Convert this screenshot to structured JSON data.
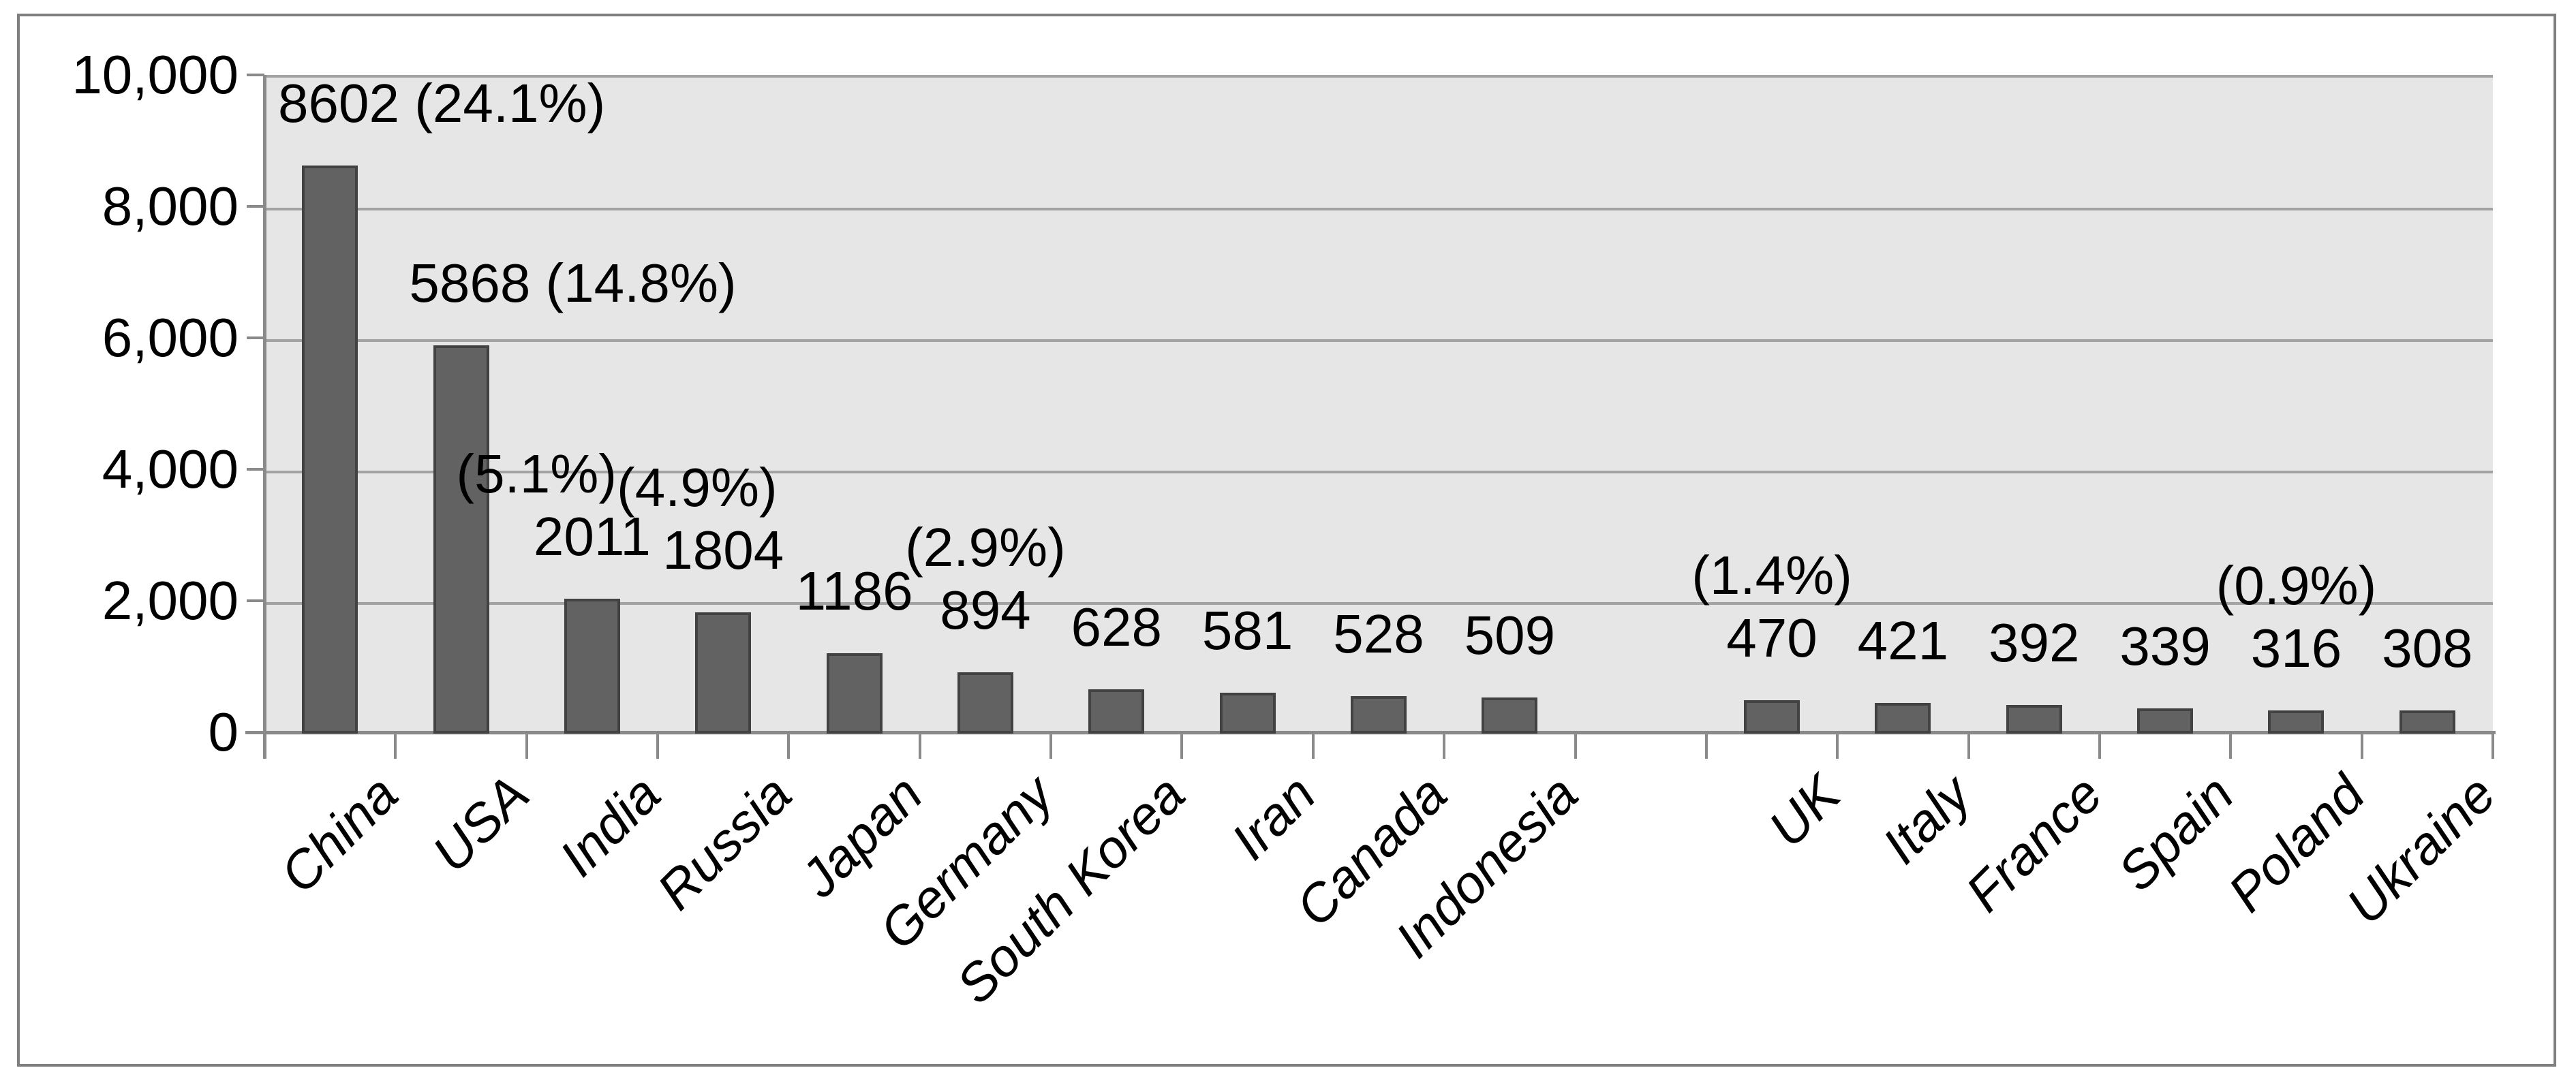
{
  "chart_data": {
    "type": "bar",
    "title": "",
    "xlabel": "",
    "ylabel": "",
    "grid": true,
    "legend": "none",
    "plot_bg": "#e6e6e6",
    "colors": {
      "bar_fill": "#626262",
      "bar_border": "#424242",
      "gridline": "#a3a3a3",
      "axis": "#8a8a8a",
      "frame_border": "#7f7f7f",
      "page_bg": "#ffffff",
      "text": "#000000"
    },
    "y_axis": {
      "min": 0,
      "max": 10000,
      "step": 2000,
      "tick_labels_top_to_bottom": [
        "10,000",
        "8,000",
        "6,000",
        "4,000",
        "2,000",
        "0"
      ]
    },
    "categories": [
      "China",
      "USA",
      "India",
      "Russia",
      "Japan",
      "Germany",
      "South Korea",
      "Iran",
      "Canada",
      "Indonesia",
      "",
      "UK",
      "Italy",
      "France",
      "Spain",
      "Poland",
      "Ukraine"
    ],
    "values": [
      8602,
      5868,
      2011,
      1804,
      1186,
      894,
      628,
      581,
      528,
      509,
      null,
      470,
      421,
      392,
      339,
      316,
      308
    ],
    "points": [
      {
        "category": "China",
        "value": 8602,
        "value_label": "8602 (24.1%)",
        "pct_label": null,
        "label_align": "bar-left",
        "pct_anchor": "center"
      },
      {
        "category": "USA",
        "value": 5868,
        "value_label": "5868 (14.8%)",
        "pct_label": null,
        "label_align": "bar-left",
        "pct_anchor": "center"
      },
      {
        "category": "India",
        "value": 2011,
        "value_label": "2011",
        "pct_label": "(5.1%)",
        "label_align": "center",
        "pct_anchor": "right-at-junction"
      },
      {
        "category": "Russia",
        "value": 1804,
        "value_label": "1804",
        "pct_label": "(4.9%)",
        "label_align": "center",
        "pct_anchor": "left-at-junction"
      },
      {
        "category": "Japan",
        "value": 1186,
        "value_label": "1186",
        "pct_label": null,
        "label_align": "center",
        "pct_anchor": "center"
      },
      {
        "category": "Germany",
        "value": 894,
        "value_label": "894",
        "pct_label": "(2.9%)",
        "label_align": "center",
        "pct_anchor": "center"
      },
      {
        "category": "South Korea",
        "value": 628,
        "value_label": "628",
        "pct_label": null,
        "label_align": "center",
        "pct_anchor": "center"
      },
      {
        "category": "Iran",
        "value": 581,
        "value_label": "581",
        "pct_label": null,
        "label_align": "center",
        "pct_anchor": "center"
      },
      {
        "category": "Canada",
        "value": 528,
        "value_label": "528",
        "pct_label": null,
        "label_align": "center",
        "pct_anchor": "center"
      },
      {
        "category": "Indonesia",
        "value": 509,
        "value_label": "509",
        "pct_label": null,
        "label_align": "center",
        "pct_anchor": "center"
      },
      {
        "category": "",
        "value": null,
        "value_label": null,
        "pct_label": null,
        "label_align": "center",
        "pct_anchor": "center"
      },
      {
        "category": "UK",
        "value": 470,
        "value_label": "470",
        "pct_label": "(1.4%)",
        "label_align": "center",
        "pct_anchor": "center"
      },
      {
        "category": "Italy",
        "value": 421,
        "value_label": "421",
        "pct_label": null,
        "label_align": "center",
        "pct_anchor": "center"
      },
      {
        "category": "France",
        "value": 392,
        "value_label": "392",
        "pct_label": null,
        "label_align": "center",
        "pct_anchor": "center"
      },
      {
        "category": "Spain",
        "value": 339,
        "value_label": "339",
        "pct_label": null,
        "label_align": "center",
        "pct_anchor": "center"
      },
      {
        "category": "Poland",
        "value": 316,
        "value_label": "316",
        "pct_label": "(0.9%)",
        "label_align": "center",
        "pct_anchor": "center"
      },
      {
        "category": "Ukraine",
        "value": 308,
        "value_label": "308",
        "pct_label": null,
        "label_align": "center",
        "pct_anchor": "center"
      }
    ]
  }
}
